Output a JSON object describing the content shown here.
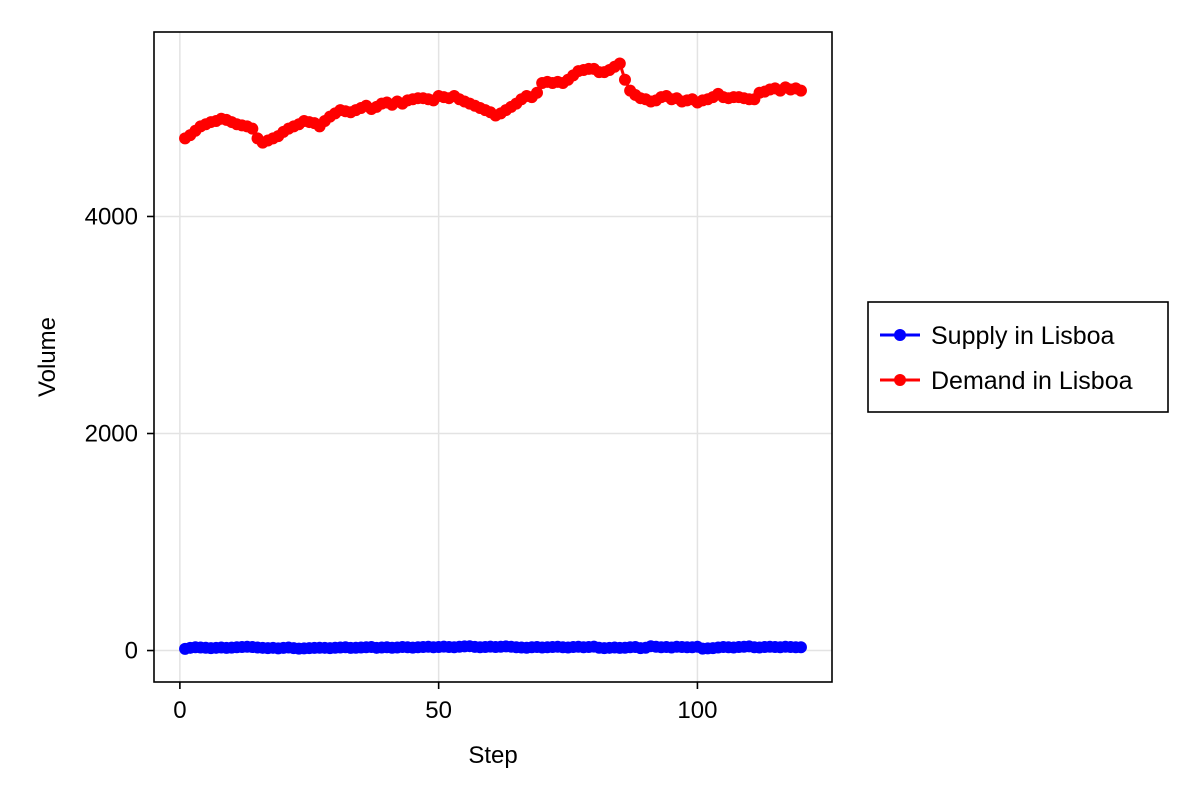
{
  "chart_data": {
    "type": "scatter",
    "title": "",
    "xlabel": "Step",
    "ylabel": "Volume",
    "xlim": [
      -5,
      126
    ],
    "ylim": [
      -290,
      5700
    ],
    "x_ticks": [
      0,
      50,
      100
    ],
    "x_tick_labels": [
      "0",
      "50",
      "100"
    ],
    "y_ticks": [
      0,
      2000,
      4000
    ],
    "y_tick_labels": [
      "0",
      "2000",
      "4000"
    ],
    "grid": true,
    "legend_position": "right",
    "x": [
      1,
      2,
      3,
      4,
      5,
      6,
      7,
      8,
      9,
      10,
      11,
      12,
      13,
      14,
      15,
      16,
      17,
      18,
      19,
      20,
      21,
      22,
      23,
      24,
      25,
      26,
      27,
      28,
      29,
      30,
      31,
      32,
      33,
      34,
      35,
      36,
      37,
      38,
      39,
      40,
      41,
      42,
      43,
      44,
      45,
      46,
      47,
      48,
      49,
      50,
      51,
      52,
      53,
      54,
      55,
      56,
      57,
      58,
      59,
      60,
      61,
      62,
      63,
      64,
      65,
      66,
      67,
      68,
      69,
      70,
      71,
      72,
      73,
      74,
      75,
      76,
      77,
      78,
      79,
      80,
      81,
      82,
      83,
      84,
      85,
      86,
      87,
      88,
      89,
      90,
      91,
      92,
      93,
      94,
      95,
      96,
      97,
      98,
      99,
      100,
      101,
      102,
      103,
      104,
      105,
      106,
      107,
      108,
      109,
      110,
      111,
      112,
      113,
      114,
      115,
      116,
      117,
      118,
      119,
      120
    ],
    "series": [
      {
        "name": "Supply in Lisboa",
        "color": "#0000ff",
        "values": [
          15,
          25,
          30,
          28,
          26,
          22,
          25,
          28,
          24,
          27,
          30,
          33,
          35,
          32,
          28,
          25,
          22,
          25,
          20,
          24,
          28,
          22,
          18,
          20,
          22,
          24,
          26,
          25,
          22,
          26,
          28,
          30,
          24,
          26,
          28,
          30,
          32,
          25,
          28,
          30,
          26,
          28,
          32,
          30,
          27,
          30,
          32,
          35,
          30,
          33,
          36,
          32,
          30,
          35,
          38,
          40,
          34,
          30,
          33,
          36,
          32,
          35,
          38,
          35,
          30,
          28,
          26,
          30,
          32,
          28,
          30,
          33,
          35,
          30,
          28,
          32,
          35,
          30,
          33,
          36,
          26,
          22,
          25,
          28,
          24,
          26,
          30,
          32,
          22,
          26,
          40,
          35,
          30,
          32,
          28,
          35,
          33,
          30,
          30,
          35,
          18,
          20,
          22,
          28,
          32,
          30,
          28,
          32,
          35,
          38,
          30,
          28,
          32,
          35,
          33,
          30,
          35,
          32,
          30,
          30
        ]
      },
      {
        "name": "Demand in Lisboa",
        "color": "#ff0000",
        "values": [
          4720,
          4750,
          4790,
          4830,
          4850,
          4870,
          4880,
          4900,
          4890,
          4870,
          4850,
          4840,
          4830,
          4810,
          4720,
          4680,
          4700,
          4720,
          4740,
          4780,
          4810,
          4830,
          4850,
          4880,
          4870,
          4860,
          4830,
          4880,
          4920,
          4950,
          4980,
          4970,
          4960,
          4980,
          5000,
          5020,
          4990,
          5010,
          5040,
          5050,
          5030,
          5060,
          5040,
          5070,
          5080,
          5090,
          5090,
          5080,
          5070,
          5110,
          5100,
          5090,
          5110,
          5080,
          5060,
          5040,
          5020,
          5000,
          4980,
          4960,
          4930,
          4950,
          4980,
          5010,
          5040,
          5080,
          5110,
          5100,
          5140,
          5230,
          5240,
          5230,
          5240,
          5230,
          5260,
          5300,
          5340,
          5350,
          5360,
          5360,
          5330,
          5330,
          5350,
          5380,
          5410,
          5260,
          5160,
          5120,
          5090,
          5080,
          5060,
          5070,
          5100,
          5110,
          5080,
          5090,
          5060,
          5070,
          5080,
          5050,
          5070,
          5080,
          5100,
          5130,
          5100,
          5090,
          5100,
          5100,
          5090,
          5080,
          5080,
          5140,
          5150,
          5170,
          5180,
          5160,
          5190,
          5170,
          5180,
          5160
        ]
      }
    ]
  }
}
